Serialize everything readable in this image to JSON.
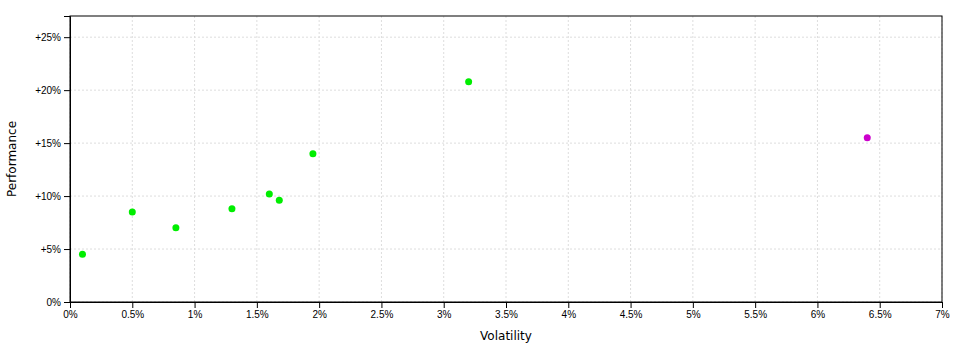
{
  "chart_data": {
    "type": "scatter",
    "xlabel": "Volatility",
    "ylabel": "Performance",
    "series": [
      {
        "color": "#00ee00",
        "x": [
          0.001,
          0.005,
          0.0085,
          0.013,
          0.016,
          0.0168,
          0.0195,
          0.032
        ],
        "values": [
          0.045,
          0.085,
          0.07,
          0.088,
          0.102,
          0.096,
          0.14,
          0.208
        ]
      },
      {
        "color": "#cc00cc",
        "x": [
          0.064
        ],
        "values": [
          0.155
        ]
      }
    ],
    "xlim": [
      0,
      0.07
    ],
    "ylim": [
      0,
      0.27
    ],
    "xticks": [
      {
        "value": 0,
        "label": "0%"
      },
      {
        "value": 0.005,
        "label": "0.5%"
      },
      {
        "value": 0.01,
        "label": "1%"
      },
      {
        "value": 0.015,
        "label": "1.5%"
      },
      {
        "value": 0.02,
        "label": "2%"
      },
      {
        "value": 0.025,
        "label": "2.5%"
      },
      {
        "value": 0.03,
        "label": "3%"
      },
      {
        "value": 0.035,
        "label": "3.5%"
      },
      {
        "value": 0.04,
        "label": "4%"
      },
      {
        "value": 0.045,
        "label": "4.5%"
      },
      {
        "value": 0.05,
        "label": "5%"
      },
      {
        "value": 0.055,
        "label": "5.5%"
      },
      {
        "value": 0.06,
        "label": "6%"
      },
      {
        "value": 0.065,
        "label": "6.5%"
      },
      {
        "value": 0.07,
        "label": "7%"
      }
    ],
    "yticks": [
      {
        "value": 0,
        "label": "0%"
      },
      {
        "value": 0.05,
        "label": "+5%"
      },
      {
        "value": 0.1,
        "label": "+10%"
      },
      {
        "value": 0.15,
        "label": "+15%"
      },
      {
        "value": 0.2,
        "label": "+20%"
      },
      {
        "value": 0.25,
        "label": "+25%"
      }
    ],
    "grid": true
  }
}
